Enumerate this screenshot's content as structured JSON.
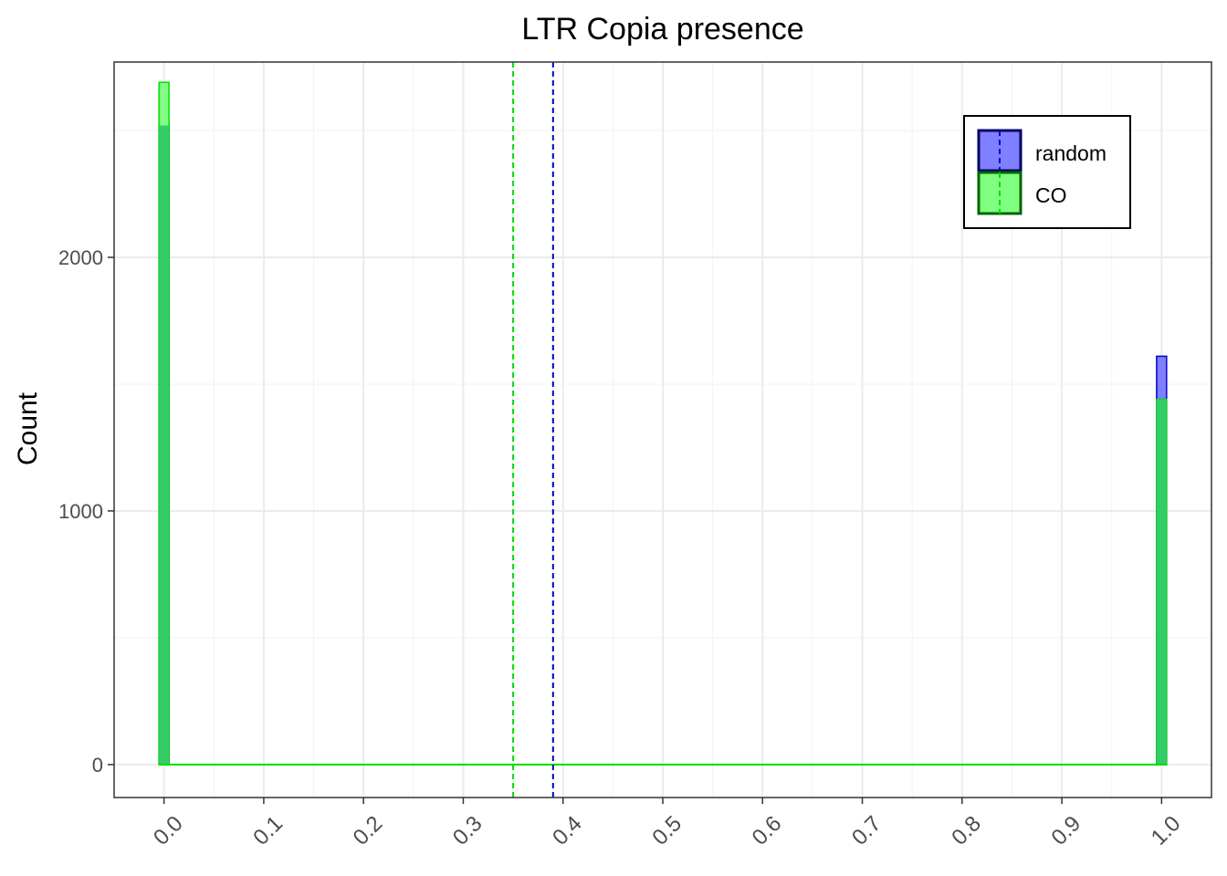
{
  "chart_data": {
    "type": "bar",
    "title": "LTR Copia presence",
    "xlabel": "",
    "ylabel": "Count",
    "xlim": [
      -0.05,
      1.05
    ],
    "ylim": [
      -130,
      2770
    ],
    "x_ticks": [
      "0.0",
      "0.1",
      "0.2",
      "0.3",
      "0.4",
      "0.5",
      "0.6",
      "0.7",
      "0.8",
      "0.9",
      "1.0"
    ],
    "x_tick_values": [
      0,
      0.1,
      0.2,
      0.3,
      0.4,
      0.5,
      0.6,
      0.7,
      0.8,
      0.9,
      1.0
    ],
    "y_ticks": [
      "0",
      "1000",
      "2000"
    ],
    "y_tick_values": [
      0,
      1000,
      2000
    ],
    "grid": true,
    "legend_position": "top-right",
    "bin_width": 0.01,
    "series": [
      {
        "name": "random",
        "fill": "#7f7fff",
        "stroke": "#0000cc",
        "bins": [
          {
            "x": 0.0,
            "count": 2520
          },
          {
            "x": 1.0,
            "count": 1610
          }
        ],
        "mean": 0.39
      },
      {
        "name": "CO",
        "fill": "#80ff80",
        "stroke": "#00dd00",
        "bins": [
          {
            "x": 0.0,
            "count": 2690
          },
          {
            "x": 1.0,
            "count": 1440
          }
        ],
        "mean": 0.35
      }
    ],
    "overlap_fill": "#33cc66"
  }
}
